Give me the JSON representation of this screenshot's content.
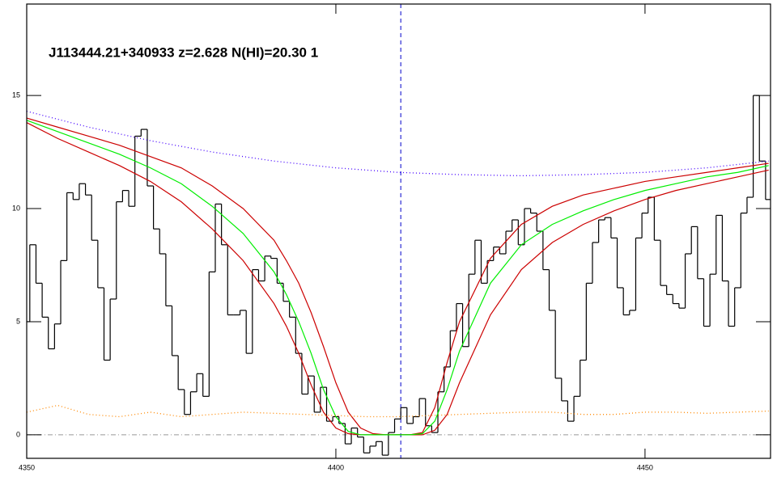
{
  "chart_data": {
    "type": "spectrum",
    "title": "J113444.21+340933 z=2.628 N(HI)=20.30 1",
    "xlim": [
      4350,
      4470.3
    ],
    "ylim": [
      -1.04,
      19.04
    ],
    "xticks": [
      4350,
      4400,
      4450
    ],
    "yticks": [
      0,
      5,
      10,
      15
    ],
    "zero_line": {
      "value": 0,
      "color": "#999999"
    },
    "vline": {
      "value": 4410.5,
      "color": "#0000cc"
    },
    "series": [
      {
        "type": "step",
        "color": "#000000",
        "x": [
          4350,
          4351,
          4352,
          4353,
          4354,
          4355,
          4356,
          4357,
          4358,
          4359,
          4360,
          4361,
          4362,
          4363,
          4364,
          4365,
          4366,
          4367,
          4368,
          4369,
          4370,
          4371,
          4372,
          4373,
          4374,
          4375,
          4376,
          4377,
          4378,
          4379,
          4380,
          4381,
          4382,
          4383,
          4384,
          4385,
          4386,
          4387,
          4388,
          4389,
          4390,
          4391,
          4392,
          4393,
          4394,
          4395,
          4396,
          4397,
          4398,
          4399,
          4400,
          4401,
          4402,
          4403,
          4404,
          4405,
          4406,
          4407,
          4408,
          4409,
          4410,
          4411,
          4412,
          4413,
          4414,
          4415,
          4416,
          4417,
          4418,
          4419,
          4420,
          4421,
          4422,
          4423,
          4424,
          4425,
          4426,
          4427,
          4428,
          4429,
          4430,
          4431,
          4432,
          4433,
          4434,
          4435,
          4436,
          4437,
          4438,
          4439,
          4440,
          4441,
          4442,
          4443,
          4444,
          4445,
          4446,
          4447,
          4448,
          4449,
          4450,
          4451,
          4452,
          4453,
          4454,
          4455,
          4456,
          4457,
          4458,
          4459,
          4460,
          4461,
          4462,
          4463,
          4464,
          4465,
          4466,
          4467,
          4468,
          4469,
          4470
        ],
        "values": [
          5.0,
          8.4,
          6.7,
          5.2,
          3.8,
          4.9,
          7.7,
          10.7,
          10.4,
          11.1,
          10.6,
          8.6,
          6.5,
          3.3,
          6.0,
          10.3,
          10.8,
          10.1,
          13.2,
          13.5,
          11.0,
          9.1,
          8.0,
          5.7,
          3.5,
          2.0,
          0.9,
          1.9,
          2.7,
          1.7,
          7.2,
          10.2,
          8.4,
          5.3,
          5.3,
          5.5,
          3.6,
          7.3,
          6.8,
          7.9,
          7.8,
          6.7,
          5.9,
          5.2,
          3.6,
          1.8,
          2.6,
          1.0,
          2.1,
          0.6,
          0.8,
          0.5,
          -0.4,
          0.3,
          -0.1,
          -0.8,
          -0.5,
          -0.3,
          -0.9,
          0.1,
          0.7,
          1.2,
          0.5,
          0.8,
          1.6,
          0.4,
          0.1,
          1.9,
          3.0,
          4.6,
          5.8,
          3.9,
          7.1,
          8.6,
          6.7,
          7.7,
          8.3,
          8.0,
          9.0,
          9.5,
          8.4,
          10.0,
          9.8,
          9.0,
          7.3,
          5.5,
          2.5,
          1.5,
          0.6,
          1.7,
          3.3,
          6.7,
          8.5,
          9.5,
          9.6,
          8.7,
          6.5,
          5.3,
          5.5,
          8.7,
          9.8,
          10.5,
          8.6,
          6.6,
          6.2,
          5.8,
          5.6,
          8.0,
          9.2,
          6.9,
          4.8,
          7.1,
          9.7,
          6.8,
          4.8,
          6.5,
          9.8,
          10.5,
          15.0,
          12.1,
          10.4
        ]
      },
      {
        "type": "line",
        "color": "#cc0000",
        "x": [
          4350,
          4355,
          4360,
          4365,
          4370,
          4375,
          4380,
          4385,
          4390,
          4392,
          4394,
          4396,
          4398,
          4400,
          4402,
          4404,
          4406,
          4408,
          4410,
          4412,
          4414,
          4416,
          4418,
          4420,
          4425,
          4430,
          4435,
          4440,
          4445,
          4450,
          4455,
          4460,
          4465,
          4470
        ],
        "values": [
          14.0,
          13.6,
          13.2,
          12.8,
          12.3,
          11.8,
          11.0,
          10.0,
          8.6,
          7.7,
          6.7,
          5.4,
          3.9,
          2.3,
          1.0,
          0.3,
          0.05,
          0,
          0,
          0,
          0.1,
          1.2,
          3.2,
          5.0,
          7.8,
          9.3,
          10.1,
          10.6,
          10.9,
          11.2,
          11.4,
          11.6,
          11.8,
          12.0
        ]
      },
      {
        "type": "line",
        "color": "#cc0000",
        "x": [
          4350,
          4355,
          4360,
          4365,
          4370,
          4375,
          4380,
          4385,
          4390,
          4392,
          4394,
          4396,
          4398,
          4400,
          4402,
          4404,
          4406,
          4408,
          4410,
          4412,
          4414,
          4416,
          4418,
          4420,
          4425,
          4430,
          4435,
          4440,
          4445,
          4450,
          4455,
          4460,
          4465,
          4470
        ],
        "values": [
          13.8,
          13.1,
          12.5,
          11.9,
          11.2,
          10.3,
          9.1,
          7.7,
          5.8,
          4.8,
          3.6,
          2.2,
          1.0,
          0.3,
          0.05,
          0,
          0,
          0,
          0,
          0,
          0,
          0.2,
          0.9,
          2.3,
          5.3,
          7.3,
          8.5,
          9.3,
          9.9,
          10.4,
          10.8,
          11.1,
          11.4,
          11.7
        ]
      },
      {
        "type": "line",
        "color": "#00ee00",
        "x": [
          4350,
          4355,
          4360,
          4365,
          4370,
          4375,
          4380,
          4385,
          4390,
          4392,
          4394,
          4396,
          4398,
          4400,
          4402,
          4404,
          4406,
          4408,
          4410,
          4412,
          4414,
          4416,
          4418,
          4420,
          4425,
          4430,
          4435,
          4440,
          4445,
          4450,
          4455,
          4460,
          4465,
          4470
        ],
        "values": [
          13.9,
          13.4,
          12.9,
          12.4,
          11.8,
          11.1,
          10.1,
          8.9,
          7.2,
          6.2,
          5.0,
          3.6,
          2.0,
          0.8,
          0.15,
          0,
          0,
          0,
          0,
          0,
          0.05,
          0.6,
          2.0,
          3.7,
          6.7,
          8.4,
          9.3,
          9.9,
          10.4,
          10.8,
          11.1,
          11.4,
          11.6,
          11.9
        ]
      },
      {
        "type": "dotted",
        "color": "#4400ff",
        "x": [
          4350,
          4360,
          4370,
          4380,
          4390,
          4400,
          4410,
          4420,
          4430,
          4440,
          4450,
          4460,
          4470
        ],
        "values": [
          14.3,
          13.6,
          13.0,
          12.5,
          12.1,
          11.8,
          11.6,
          11.5,
          11.45,
          11.5,
          11.6,
          11.8,
          12.1
        ]
      },
      {
        "type": "dotted",
        "color": "#ff8800",
        "x": [
          4350,
          4355,
          4360,
          4365,
          4370,
          4375,
          4380,
          4385,
          4390,
          4395,
          4400,
          4405,
          4410,
          4415,
          4420,
          4425,
          4430,
          4435,
          4440,
          4445,
          4450,
          4455,
          4460,
          4465,
          4470
        ],
        "values": [
          1.0,
          1.3,
          0.9,
          0.8,
          1.0,
          0.8,
          0.9,
          1.0,
          0.95,
          0.9,
          0.85,
          0.8,
          0.8,
          0.85,
          0.9,
          0.95,
          1.0,
          1.0,
          0.9,
          0.9,
          1.0,
          1.0,
          0.95,
          1.0,
          1.05
        ]
      }
    ]
  }
}
